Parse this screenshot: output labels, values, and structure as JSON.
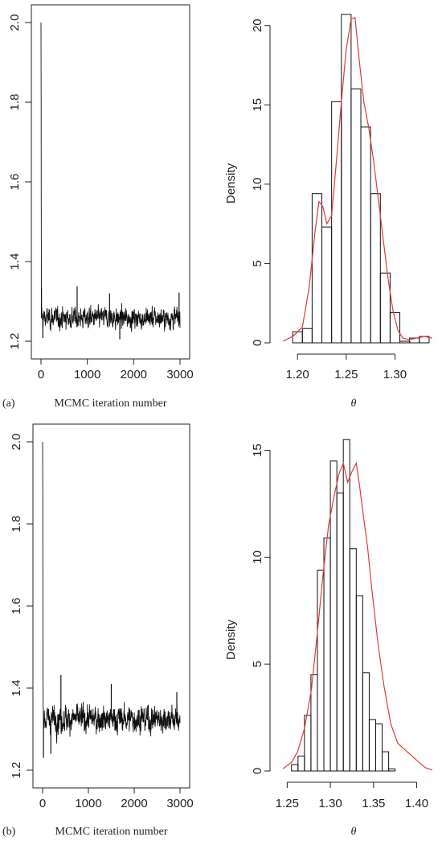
{
  "panels": [
    {
      "label": "(a)",
      "trace": {
        "type": "line",
        "xlabel": "MCMC iteration number",
        "xlim": [
          0,
          3000
        ],
        "ylim": [
          1.2,
          2.0
        ],
        "xticks": [
          "0",
          "1000",
          "2000",
          "3000"
        ],
        "yticks": [
          "1.2",
          "1.4",
          "1.6",
          "1.8",
          "2.0"
        ],
        "start_value": 2.0,
        "burn_in": [
          2.0,
          1.8,
          1.55,
          1.33,
          1.28
        ],
        "center": 1.258,
        "band": 0.02,
        "spikes": [
          [
            10,
            1.335
          ],
          [
            780,
            1.338
          ],
          [
            1480,
            1.32
          ],
          [
            2980,
            1.322
          ],
          [
            1700,
            1.205
          ],
          [
            40,
            1.208
          ]
        ]
      },
      "hist": {
        "type": "bar",
        "ylabel": "Density",
        "xlabel": "θ",
        "xlim": [
          1.185,
          1.34
        ],
        "ylim": [
          0,
          21
        ],
        "xticks": [
          "1.20",
          "1.25",
          "1.30"
        ],
        "yticks": [
          "0",
          "5",
          "10",
          "15",
          "20"
        ],
        "bin_start": 1.195,
        "bin_width": 0.01,
        "values": [
          0.7,
          0.9,
          9.4,
          7.3,
          15.2,
          20.7,
          16.0,
          13.6,
          9.4,
          4.4,
          1.9,
          0.1,
          0.3,
          0.4
        ],
        "density_x": [
          1.185,
          1.195,
          1.205,
          1.212,
          1.218,
          1.222,
          1.226,
          1.23,
          1.235,
          1.24,
          1.245,
          1.25,
          1.255,
          1.259,
          1.263,
          1.268,
          1.273,
          1.278,
          1.283,
          1.288,
          1.293,
          1.298,
          1.303,
          1.308,
          1.315,
          1.322,
          1.33,
          1.338
        ],
        "density_y": [
          0.1,
          0.4,
          1.0,
          3.5,
          7.0,
          8.9,
          8.6,
          7.5,
          8.0,
          11.5,
          15.2,
          18.5,
          20.4,
          20.5,
          18.0,
          15.2,
          13.6,
          11.5,
          9.0,
          6.5,
          4.0,
          2.0,
          0.8,
          0.3,
          0.2,
          0.3,
          0.4,
          0.3
        ],
        "density_color": "#e03a3a"
      }
    },
    {
      "label": "(b)",
      "trace": {
        "type": "line",
        "xlabel": "MCMC iteration number",
        "xlim": [
          0,
          3000
        ],
        "ylim": [
          1.2,
          2.0
        ],
        "xticks": [
          "0",
          "1000",
          "2000",
          "3000"
        ],
        "yticks": [
          "1.2",
          "1.4",
          "1.6",
          "1.8",
          "2.0"
        ],
        "start_value": 2.0,
        "burn_in": [
          2.0,
          1.9,
          1.7,
          1.45,
          1.35
        ],
        "center": 1.325,
        "band": 0.025,
        "spikes": [
          [
            400,
            1.432
          ],
          [
            1500,
            1.41
          ],
          [
            2930,
            1.39
          ],
          [
            20,
            1.23
          ],
          [
            180,
            1.24
          ]
        ]
      },
      "hist": {
        "type": "bar",
        "ylabel": "Density",
        "xlabel": "θ",
        "xlim": [
          1.245,
          1.42
        ],
        "ylim": [
          0,
          16
        ],
        "xticks": [
          "1.25",
          "1.30",
          "1.35",
          "1.40"
        ],
        "yticks": [
          "0",
          "5",
          "10",
          "15"
        ],
        "bin_start": 1.255,
        "bin_width": 0.0075,
        "values": [
          0.3,
          0.7,
          2.6,
          4.5,
          9.4,
          10.9,
          14.5,
          13.0,
          15.5,
          10.4,
          8.2,
          4.6,
          2.4,
          2.2,
          0.9,
          0.1
        ],
        "density_x": [
          1.245,
          1.255,
          1.262,
          1.27,
          1.278,
          1.285,
          1.292,
          1.298,
          1.304,
          1.31,
          1.315,
          1.32,
          1.325,
          1.33,
          1.334,
          1.338,
          1.343,
          1.348,
          1.355,
          1.362,
          1.37,
          1.378,
          1.386,
          1.392,
          1.4,
          1.41,
          1.418
        ],
        "density_y": [
          0.1,
          0.4,
          0.9,
          2.0,
          3.8,
          6.5,
          9.4,
          11.5,
          12.8,
          13.9,
          14.4,
          13.5,
          14.0,
          14.4,
          13.3,
          12.0,
          10.5,
          8.5,
          6.0,
          4.0,
          2.2,
          1.3,
          1.0,
          0.8,
          0.5,
          0.15,
          0.05
        ],
        "density_color": "#e03a3a"
      }
    }
  ]
}
